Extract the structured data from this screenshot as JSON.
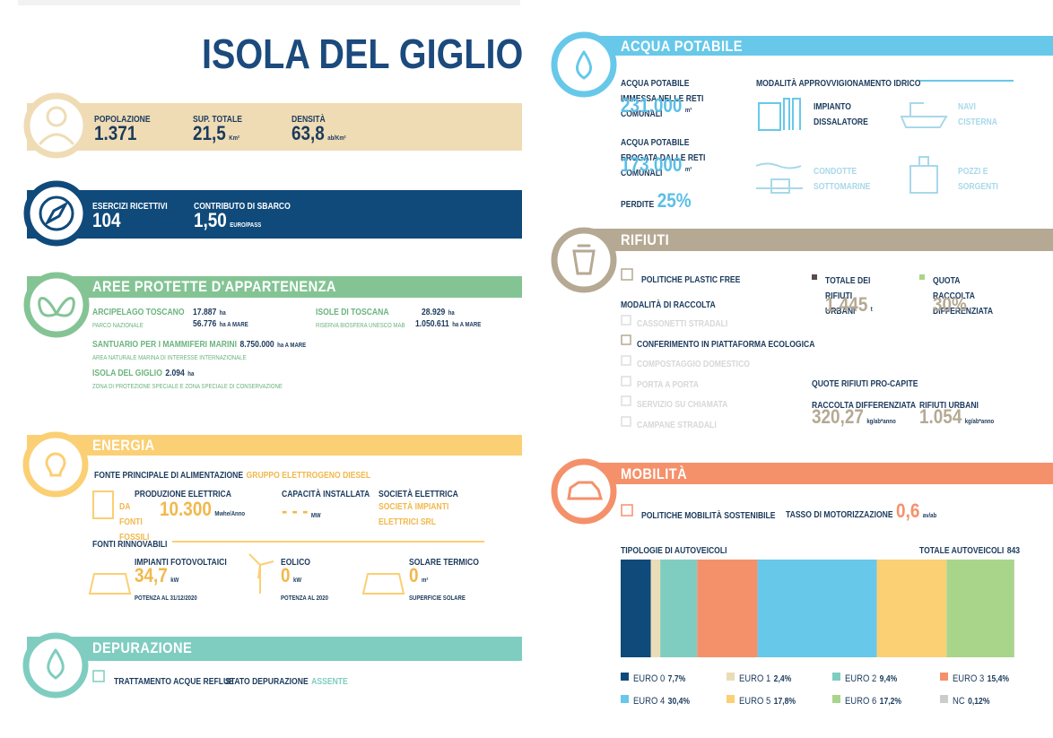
{
  "title": "ISOLA DEL GIGLIO",
  "population": {
    "population_label": "POPOLAZIONE",
    "population": "1.371",
    "area_label": "SUP. TOTALE",
    "area": "21,5",
    "area_unit": "Km²",
    "density_label": "DENSITÀ",
    "density": "63,8",
    "density_unit": "ab/Km²"
  },
  "tourism": {
    "lodging_label": "ESERCIZI RICETTIVI",
    "lodging": "104",
    "fee_label": "CONTRIBUTO DI SBARCO",
    "fee": "1,50",
    "fee_unit": "EURO/PASS"
  },
  "protected_areas": {
    "title": "AREE PROTETTE D'APPARTENENZA",
    "items": [
      {
        "name": "ARCIPELAGO TOSCANO",
        "type": "PARCO NAZIONALE",
        "land": "17.887",
        "land_unit": "ha",
        "sea": "56.776",
        "sea_unit": "ha A MARE"
      },
      {
        "name": "ISOLE DI TOSCANA",
        "type": "RISERVA BIOSFERA UNESCO MAB",
        "land": "28.929",
        "land_unit": "ha",
        "sea": "1.050.611",
        "sea_unit": "ha A MARE"
      },
      {
        "name": "SANTUARIO PER I MAMMIFERI MARINI",
        "type": "AREA NATURALE MARINA DI INTERESSE INTERNAZIONALE",
        "sea": "8.750.000",
        "sea_unit": "ha A MARE"
      },
      {
        "name": "ISOLA DEL GIGLIO",
        "type": "ZONA DI PROTEZIONE SPECIALE E ZONA SPECIALE DI CONSERVAZIONE",
        "land": "2.094",
        "land_unit": "ha"
      }
    ]
  },
  "energy": {
    "title": "ENERGIA",
    "source_label": "FONTE PRINCIPALE DI ALIMENTAZIONE",
    "source": "GRUPPO ELETTROGENO DIESEL",
    "production_label": "PRODUZIONE ELETTRICA",
    "production_type": "DA FONTI FOSSILI",
    "production": "10.300",
    "production_unit": "Mwhe/Anno",
    "capacity_label": "CAPACITÀ INSTALLATA",
    "capacity": "- - -",
    "capacity_unit": "MW",
    "company_label": "SOCIETÀ ELETTRICA",
    "company": "SOCIETÀ IMPIANTI ELETTRICI SRL",
    "renewables_label": "FONTI RINNOVABILI",
    "renewables": [
      {
        "name": "IMPIANTI FOTOVOLTAICI",
        "value": "34,7",
        "unit": "kW",
        "note": "POTENZA AL 31/12/2020"
      },
      {
        "name": "EOLICO",
        "value": "0",
        "unit": "kW",
        "note": "POTENZA AL 2020"
      },
      {
        "name": "SOLARE TERMICO",
        "value": "0",
        "unit": "m²",
        "note": "SUPERFICIE SOLARE"
      }
    ]
  },
  "purification": {
    "title": "DEPURAZIONE",
    "treatment": "TRATTAMENTO ACQUE REFLUE",
    "status_label": "STATO DEPURAZIONE",
    "status": "ASSENTE"
  },
  "water": {
    "title": "ACQUA POTABILE",
    "input_label": "ACQUA POTABILE IMMESSA NELLE RETI COMUNALI",
    "input": "231.000",
    "input_unit": "m³",
    "output_label": "ACQUA POTABILE EROGATA DALLE RETI COMUNALI",
    "output": "173.000",
    "output_unit": "m³",
    "loss_label": "PERDITE",
    "loss": "25%",
    "supply_label": "MODALITÀ APPROVVIGIONAMENTO IDRICO",
    "supply": [
      "IMPIANTO DISSALATORE",
      "NAVI CISTERNA",
      "CONDOTTE SOTTOMARINE",
      "POZZI E SORGENTI"
    ]
  },
  "waste": {
    "title": "RIFIUTI",
    "plastic_free": "POLITICHE PLASTIC FREE",
    "collection_label": "MODALITÀ DI RACCOLTA",
    "collection": [
      "CASSONETTI STRADALI",
      "CONFERIMENTO IN PIATTAFORMA ECOLOGICA",
      "COMPOSTAGGIO DOMESTICO",
      "PORTA A PORTA",
      "SERVIZIO SU CHIAMATA",
      "CAMPANE STRADALI"
    ],
    "total_label": "TOTALE DEI RIFIUTI URBANI",
    "total": "1.445",
    "total_unit": "t",
    "separate_label": "QUOTA RACCOLTA DIFFERENZIATA",
    "separate": "30%",
    "per_capita_label": "QUOTE RIFIUTI PRO-CAPITE",
    "per_capita_separate_label": "RACCOLTA DIFFERENZIATA",
    "per_capita_separate": "320,27",
    "per_capita_separate_unit": "kg/ab*anno",
    "per_capita_urban_label": "RIFIUTI URBANI",
    "per_capita_urban": "1.054",
    "per_capita_urban_unit": "kg/ab*anno"
  },
  "mobility": {
    "title": "MOBILITÀ",
    "policy": "POLITICHE MOBILITÀ SOSTENIBILE",
    "rate_label": "TASSO DI MOTORIZZAZIONE",
    "rate": "0,6",
    "rate_unit": "av/ab",
    "vehicles_label": "TIPOLOGIE DI AUTOVEICOLI",
    "total_label": "TOTALE AUTOVEICOLI",
    "total": "843",
    "vehicles": {
      "categories": [
        "EURO 0",
        "EURO 1",
        "EURO 2",
        "EURO 3",
        "EURO 4",
        "EURO 5",
        "EURO 6",
        "NC"
      ],
      "values": [
        7.7,
        2.4,
        9.4,
        15.4,
        30.4,
        17.8,
        17.2,
        0.12
      ],
      "value_labels": [
        "7,7%",
        "2,4%",
        "9,4%",
        "15,4%",
        "30,4%",
        "17,8%",
        "17,2%",
        "0,12%"
      ],
      "colors": [
        "#0f4a7a",
        "#ebdcb8",
        "#7fcdc0",
        "#f4916b",
        "#67c8ea",
        "#fbcf74",
        "#a9d58b",
        "#cccccc"
      ]
    }
  }
}
